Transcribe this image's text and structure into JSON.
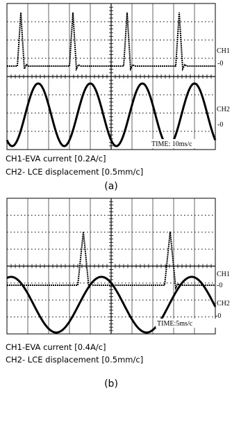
{
  "panels": [
    {
      "channel_labels": [
        "CH1",
        "-0",
        "CH2",
        "-0"
      ],
      "timebase": "TIME: 10ms/c",
      "caption": [
        "CH1-EVA current [0.2A/c]",
        "CH2- LCE displacement [0.5mm/c]"
      ],
      "label": "(a)"
    },
    {
      "channel_labels": [
        "CH1",
        "-0",
        "CH2",
        "-0"
      ],
      "timebase": "TIME:5ms/c",
      "caption": [
        "CH1-EVA current [0.4A/c]",
        "CH2- LCE displacement [0.5mm/c]"
      ],
      "label": "(b)"
    }
  ]
}
